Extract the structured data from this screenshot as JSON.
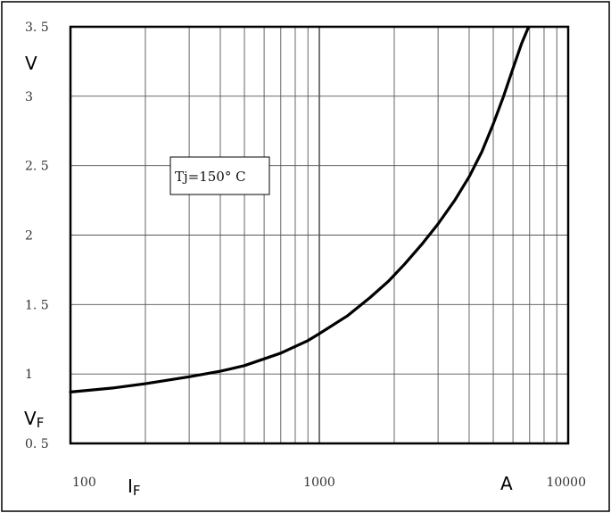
{
  "chart_data": {
    "type": "line",
    "title": "",
    "x_scale": "log",
    "xlim": [
      100,
      10000
    ],
    "ylim": [
      0.5,
      3.5
    ],
    "x_major_ticks": [
      {
        "value": 100,
        "label": "100"
      },
      {
        "value": 1000,
        "label": "1000"
      },
      {
        "value": 10000,
        "label": "10000"
      }
    ],
    "y_ticks": [
      {
        "value": 0.5,
        "label": "0. 5"
      },
      {
        "value": 1,
        "label": "1"
      },
      {
        "value": 1.5,
        "label": "1. 5"
      },
      {
        "value": 2,
        "label": "2"
      },
      {
        "value": 2.5,
        "label": "2. 5"
      },
      {
        "value": 3,
        "label": "3"
      },
      {
        "value": 3.5,
        "label": "3. 5"
      }
    ],
    "grid": true,
    "ylabel_unit": "V",
    "ylabel_symbol": "V",
    "ylabel_subscript": "F",
    "xlabel_symbol": "I",
    "xlabel_subscript": "F",
    "xlabel_unit": "A",
    "annotation": "Tj=150° C",
    "series": [
      {
        "x": [
          100,
          150,
          200,
          300,
          400,
          500,
          700,
          900,
          1000,
          1300,
          1600,
          1900,
          2200,
          2600,
          3000,
          3500,
          4000,
          4500,
          5000,
          5500,
          6000,
          6500,
          6900
        ],
        "y": [
          0.87,
          0.9,
          0.93,
          0.98,
          1.02,
          1.06,
          1.15,
          1.24,
          1.29,
          1.42,
          1.55,
          1.67,
          1.79,
          1.94,
          2.08,
          2.25,
          2.42,
          2.6,
          2.8,
          3.0,
          3.2,
          3.38,
          3.49
        ]
      }
    ]
  }
}
